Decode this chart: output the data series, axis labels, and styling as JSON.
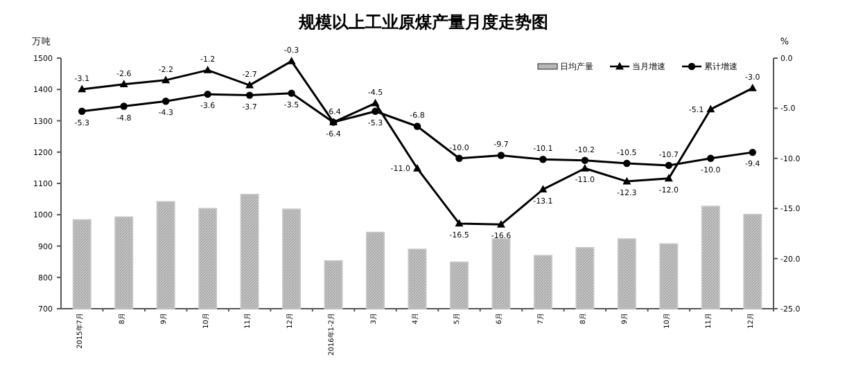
{
  "chart_data": {
    "type": "bar",
    "title": "规模以上工业原煤产量月度走势图",
    "ylabel": "万吨",
    "y2label": "%",
    "categories": [
      "2015年7月",
      "8月",
      "9月",
      "10月",
      "11月",
      "12月",
      "2016年1-2月",
      "3月",
      "4月",
      "5月",
      "6月",
      "7月",
      "8月",
      "9月",
      "10月",
      "11月",
      "12月"
    ],
    "series": [
      {
        "name": "日均产量",
        "color": "#c8c8c8",
        "values": [
          984,
          993,
          1042,
          1020,
          1065,
          1018,
          853,
          944,
          890,
          849,
          923,
          870,
          895,
          923,
          907,
          1027,
          1001
        ]
      },
      {
        "name": "当月增速",
        "type": "line",
        "axis": "y2",
        "color": "#000000",
        "marker": "triangle",
        "values": [
          -3.1,
          -2.6,
          -2.2,
          -1.2,
          -2.7,
          -0.3,
          -6.4,
          -4.5,
          -11.0,
          -16.5,
          -16.6,
          -13.1,
          -11.0,
          -12.3,
          -12.0,
          -5.1,
          -3.0
        ],
        "value_labels": [
          "-3.1",
          "-2.6",
          "-2.2",
          "-1.2",
          "-2.7",
          "-0.3",
          "-6.4",
          "-4.5",
          "-11.0",
          "-16.5",
          "-16.6",
          "-13.1",
          "-11.0",
          "-12.3",
          "-12.0",
          "-5.1",
          "-3.0"
        ]
      },
      {
        "name": "累计增速",
        "type": "line",
        "axis": "y2",
        "color": "#000000",
        "marker": "circle",
        "values": [
          -5.3,
          -4.8,
          -4.3,
          -3.6,
          -3.7,
          -3.5,
          -6.4,
          -5.3,
          -6.8,
          -10.0,
          -9.7,
          -10.1,
          -10.2,
          -10.5,
          -10.7,
          -10.0,
          -9.4
        ],
        "value_labels": [
          "-5.3",
          "-4.8",
          "-4.3",
          "-3.6",
          "-3.7",
          "-3.5",
          "-6.4",
          "-5.3",
          "-6.8",
          "-10.0",
          "-9.7",
          "-10.1",
          "-10.2",
          "-10.5",
          "-10.7",
          "-10.0",
          "-9.4"
        ]
      }
    ],
    "ylim": [
      700,
      1500
    ],
    "yticks": [
      700,
      800,
      900,
      1000,
      1100,
      1200,
      1300,
      1400,
      1500
    ],
    "y2lim": [
      -25,
      0
    ],
    "y2ticks": [
      {
        "value": -25,
        "label": "-25.0"
      },
      {
        "value": -20,
        "label": "-20.0"
      },
      {
        "value": -15,
        "label": "-15.0"
      },
      {
        "value": -10,
        "label": "-10.0"
      },
      {
        "value": -5,
        "label": "-5.0"
      },
      {
        "value": 0,
        "label": "0.0"
      }
    ],
    "legend": "top right",
    "grid": false
  }
}
